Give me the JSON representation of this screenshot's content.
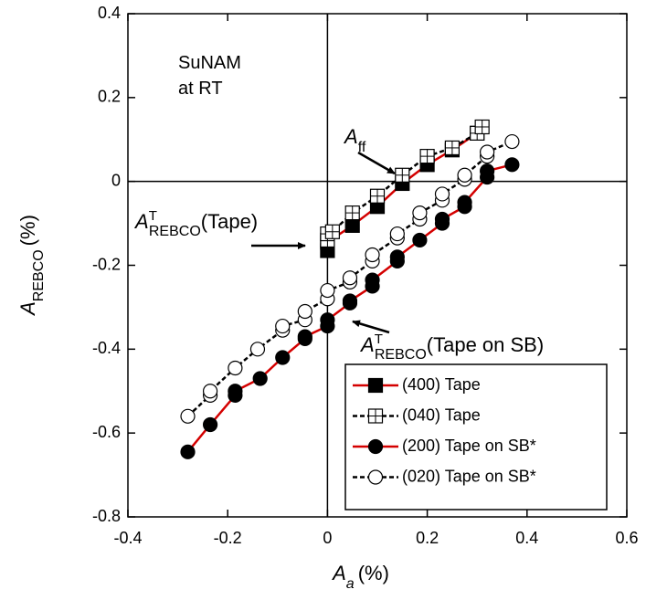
{
  "chart_data": {
    "type": "scatter",
    "xlim": [
      -0.4,
      0.6
    ],
    "ylim": [
      -0.8,
      0.4
    ],
    "xticks": [
      -0.4,
      -0.2,
      0,
      0.2,
      0.4,
      0.6
    ],
    "yticks": [
      -0.8,
      -0.6,
      -0.4,
      -0.2,
      0,
      0.2,
      0.4
    ],
    "x_label": {
      "symbol": "A",
      "subscript": "a",
      "unit": "(%)"
    },
    "y_label": {
      "symbol": "A",
      "subscript": "REBCO",
      "unit": "(%)"
    },
    "annotations": [
      {
        "lines": [
          "SuNAM",
          "at RT"
        ]
      },
      {
        "symbol": "A",
        "subscript": "ff"
      },
      {
        "symbol": "A",
        "superscript": "T",
        "subscript": "REBCO",
        "text": "(Tape)"
      },
      {
        "symbol": "A",
        "superscript": "T",
        "subscript": "REBCO",
        "text": "(Tape on SB)"
      }
    ],
    "legend": "lower right",
    "zero_lines": true,
    "series": [
      {
        "name": "(400) Tape",
        "color": "#d40000",
        "line_style": "solid",
        "marker": "square",
        "marker_fill": "black",
        "x": [
          0,
          0,
          0.05,
          0.1,
          0.15,
          0.2,
          0.25,
          0.3
        ],
        "values": [
          -0.165,
          -0.145,
          -0.105,
          -0.06,
          -0.005,
          0.04,
          0.075,
          0.115
        ]
      },
      {
        "name": "(040) Tape",
        "color": "#000000",
        "line_style": "dashed",
        "marker": "grid-square",
        "marker_fill": "white",
        "x": [
          0,
          0,
          0.01,
          0.05,
          0.1,
          0.15,
          0.2,
          0.25,
          0.3,
          0.31
        ],
        "values": [
          -0.14,
          -0.125,
          -0.12,
          -0.075,
          -0.035,
          0.015,
          0.06,
          0.08,
          0.115,
          0.13
        ]
      },
      {
        "name": "(200) Tape on SB*",
        "color": "#d40000",
        "line_style": "solid",
        "marker": "circle",
        "marker_fill": "black",
        "x": [
          -0.28,
          -0.235,
          -0.185,
          -0.185,
          -0.135,
          -0.09,
          -0.045,
          -0.045,
          0,
          0,
          0.045,
          0.045,
          0.09,
          0.09,
          0.14,
          0.14,
          0.185,
          0.23,
          0.23,
          0.275,
          0.275,
          0.32,
          0.32,
          0.37
        ],
        "values": [
          -0.645,
          -0.58,
          -0.51,
          -0.5,
          -0.47,
          -0.42,
          -0.375,
          -0.37,
          -0.345,
          -0.33,
          -0.29,
          -0.285,
          -0.25,
          -0.235,
          -0.19,
          -0.18,
          -0.14,
          -0.1,
          -0.09,
          -0.06,
          -0.05,
          0.01,
          0.025,
          0.04
        ]
      },
      {
        "name": "(020) Tape on SB*",
        "color": "#000000",
        "line_style": "dashed",
        "marker": "circle",
        "marker_fill": "white",
        "x": [
          -0.28,
          -0.235,
          -0.235,
          -0.185,
          -0.14,
          -0.09,
          -0.09,
          -0.045,
          -0.045,
          0,
          0,
          0.045,
          0.045,
          0.09,
          0.09,
          0.14,
          0.14,
          0.185,
          0.185,
          0.23,
          0.23,
          0.275,
          0.275,
          0.32,
          0.32,
          0.37
        ],
        "values": [
          -0.56,
          -0.51,
          -0.5,
          -0.445,
          -0.4,
          -0.355,
          -0.345,
          -0.33,
          -0.31,
          -0.28,
          -0.26,
          -0.24,
          -0.23,
          -0.19,
          -0.175,
          -0.135,
          -0.125,
          -0.09,
          -0.075,
          -0.045,
          -0.03,
          0.005,
          0.015,
          0.06,
          0.07,
          0.095
        ]
      }
    ]
  }
}
